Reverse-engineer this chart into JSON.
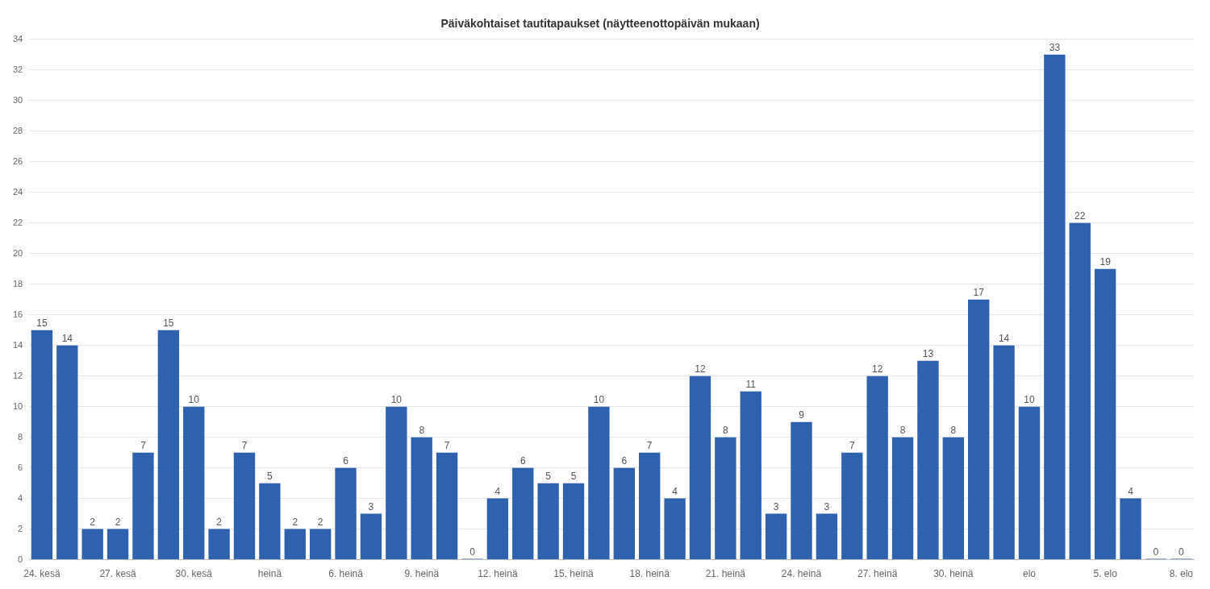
{
  "chart_data": {
    "type": "bar",
    "title": "Päiväkohtaiset tautitapaukset (näytteenottopäivän mukaan)",
    "categories": [
      "24. kesä",
      null,
      null,
      "27. kesä",
      null,
      null,
      "30. kesä",
      null,
      null,
      "heinä",
      null,
      null,
      "6. heinä",
      null,
      null,
      "9. heinä",
      null,
      null,
      "12. heinä",
      null,
      null,
      "15. heinä",
      null,
      null,
      "18. heinä",
      null,
      null,
      "21. heinä",
      null,
      null,
      "24. heinä",
      null,
      null,
      "27. heinä",
      null,
      null,
      "30. heinä",
      null,
      null,
      "elo",
      null,
      null,
      "5. elo",
      null,
      null,
      "8. elo"
    ],
    "values": [
      15,
      14,
      2,
      2,
      7,
      15,
      10,
      2,
      7,
      5,
      2,
      2,
      6,
      3,
      10,
      8,
      7,
      0,
      4,
      6,
      5,
      5,
      10,
      6,
      7,
      4,
      12,
      8,
      11,
      3,
      9,
      3,
      7,
      12,
      8,
      13,
      8,
      17,
      14,
      10,
      33,
      22,
      19,
      4,
      0,
      0
    ],
    "color": "#2e62ae",
    "ylim": [
      0,
      34
    ],
    "yticks": [
      0,
      2,
      4,
      6,
      8,
      10,
      12,
      14,
      16,
      18,
      20,
      22,
      24,
      26,
      28,
      30,
      32,
      34
    ],
    "grid": "y",
    "data_labels": true
  }
}
